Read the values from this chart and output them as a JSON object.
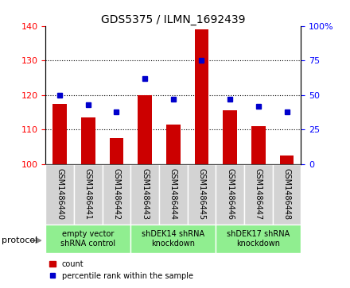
{
  "title": "GDS5375 / ILMN_1692439",
  "samples": [
    "GSM1486440",
    "GSM1486441",
    "GSM1486442",
    "GSM1486443",
    "GSM1486444",
    "GSM1486445",
    "GSM1486446",
    "GSM1486447",
    "GSM1486448"
  ],
  "counts": [
    117.5,
    113.5,
    107.5,
    120.0,
    111.5,
    139.0,
    115.5,
    111.0,
    102.5
  ],
  "percentiles": [
    50,
    43,
    38,
    62,
    47,
    75,
    47,
    42,
    38
  ],
  "ylim_left": [
    100,
    140
  ],
  "ylim_right": [
    0,
    100
  ],
  "yticks_left": [
    100,
    110,
    120,
    130,
    140
  ],
  "yticks_right": [
    0,
    25,
    50,
    75,
    100
  ],
  "group_info": [
    {
      "label": "empty vector\nshRNA control",
      "xstart": -0.5,
      "xend": 2.5,
      "color": "#90EE90"
    },
    {
      "label": "shDEK14 shRNA\nknockdown",
      "xstart": 2.5,
      "xend": 5.5,
      "color": "#90EE90"
    },
    {
      "label": "shDEK17 shRNA\nknockdown",
      "xstart": 5.5,
      "xend": 8.5,
      "color": "#90EE90"
    }
  ],
  "protocol_label": "protocol",
  "bar_color": "#CC0000",
  "dot_color": "#0000CC",
  "bar_width": 0.5,
  "sample_box_color": "#D3D3D3",
  "title_fontsize": 10,
  "axis_fontsize": 8,
  "label_fontsize": 7,
  "sample_fontsize": 7
}
